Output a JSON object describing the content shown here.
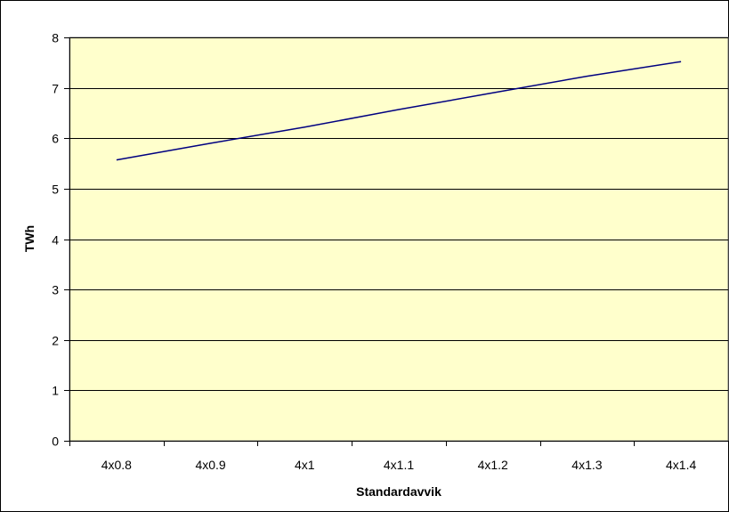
{
  "chart_data": {
    "type": "line",
    "title": "",
    "xlabel": "Standardavvik",
    "ylabel": "TWh",
    "categories": [
      "4x0.8",
      "4x0.9",
      "4x1",
      "4x1.1",
      "4x1.2",
      "4x1.3",
      "4x1.4"
    ],
    "series": [
      {
        "values": [
          5.57,
          5.9,
          6.22,
          6.57,
          6.9,
          7.23,
          7.52
        ]
      }
    ],
    "ylim": [
      0,
      8
    ],
    "yticks": [
      0,
      1,
      2,
      3,
      4,
      5,
      6,
      7,
      8
    ],
    "grid": true,
    "legend": "none"
  },
  "colors": {
    "plot_background": "#ffffcc",
    "line": "#000080",
    "gridline": "#000000",
    "frame": "#000000"
  }
}
